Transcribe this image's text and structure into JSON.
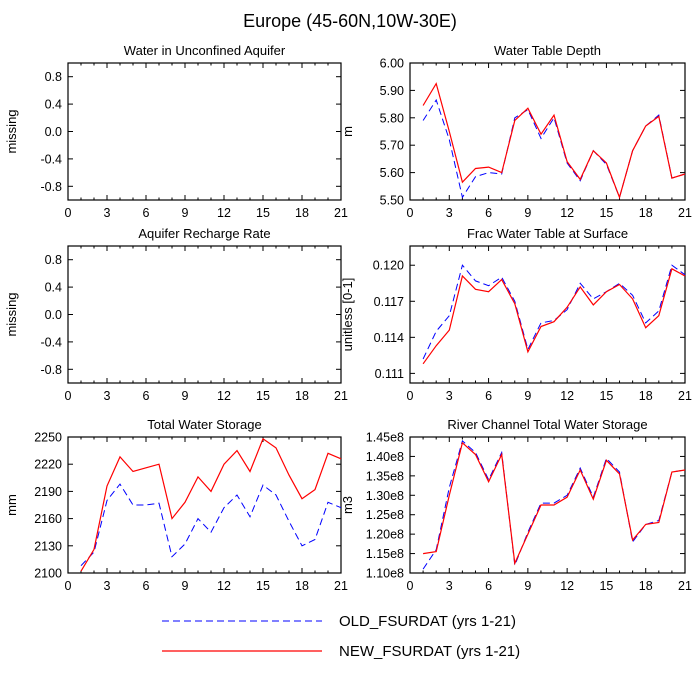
{
  "figure_title": "Europe (45-60N,10W-30E)",
  "colors": {
    "old": "#0000ff",
    "new": "#ff0000"
  },
  "legend": [
    {
      "label": "OLD_FSURDAT (yrs 1-21)",
      "style": "dashed",
      "color": "#0000ff"
    },
    {
      "label": "NEW_FSURDAT (yrs 1-21)",
      "style": "solid",
      "color": "#ff0000"
    }
  ],
  "chart_data": [
    {
      "type": "line",
      "title": "Water in Unconfined Aquifer",
      "xlabel": "",
      "ylabel": "missing",
      "xlim": [
        0,
        21
      ],
      "ylim": [
        -1.0,
        1.0
      ],
      "x_ticks": [
        "0",
        "3",
        "6",
        "9",
        "12",
        "15",
        "18",
        "21"
      ],
      "y_ticks": [
        "-0.8",
        "-0.4",
        "0.0",
        "0.4",
        "0.8"
      ],
      "y_tick_values": [
        -0.8,
        -0.4,
        0.0,
        0.4,
        0.8
      ],
      "x": [],
      "series": []
    },
    {
      "type": "line",
      "title": "Water Table Depth",
      "xlabel": "",
      "ylabel": "m",
      "xlim": [
        0,
        21
      ],
      "ylim": [
        5.5,
        6.0
      ],
      "x_ticks": [
        "0",
        "3",
        "6",
        "9",
        "12",
        "15",
        "18",
        "21"
      ],
      "y_ticks": [
        "5.50",
        "5.60",
        "5.70",
        "5.80",
        "5.90",
        "6.00"
      ],
      "y_tick_values": [
        5.5,
        5.6,
        5.7,
        5.8,
        5.9,
        6.0
      ],
      "x": [
        1,
        2,
        3,
        4,
        5,
        6,
        7,
        8,
        9,
        10,
        11,
        12,
        13,
        14,
        15,
        16,
        17,
        18,
        19,
        20,
        21
      ],
      "series": [
        {
          "name": "OLD_FSURDAT (yrs 1-21)",
          "values": [
            5.79,
            5.865,
            5.72,
            5.51,
            5.585,
            5.6,
            5.595,
            5.8,
            5.83,
            5.725,
            5.8,
            5.635,
            5.57,
            5.68,
            5.63,
            5.51,
            5.68,
            5.77,
            5.81,
            5.58,
            5.595
          ]
        },
        {
          "name": "NEW_FSURDAT (yrs 1-21)",
          "values": [
            5.845,
            5.925,
            5.75,
            5.565,
            5.615,
            5.62,
            5.6,
            5.79,
            5.835,
            5.74,
            5.81,
            5.64,
            5.575,
            5.68,
            5.635,
            5.51,
            5.68,
            5.77,
            5.805,
            5.58,
            5.595
          ]
        }
      ]
    },
    {
      "type": "line",
      "title": "Aquifer Recharge Rate",
      "xlabel": "",
      "ylabel": "missing",
      "xlim": [
        0,
        21
      ],
      "ylim": [
        -1.0,
        1.0
      ],
      "x_ticks": [
        "0",
        "3",
        "6",
        "9",
        "12",
        "15",
        "18",
        "21"
      ],
      "y_ticks": [
        "-0.8",
        "-0.4",
        "0.0",
        "0.4",
        "0.8"
      ],
      "y_tick_values": [
        -0.8,
        -0.4,
        0.0,
        0.4,
        0.8
      ],
      "x": [],
      "series": []
    },
    {
      "type": "line",
      "title": "Frac Water Table at Surface",
      "xlabel": "",
      "ylabel": "unitless [0-1]",
      "xlim": [
        0,
        21
      ],
      "ylim": [
        0.1102,
        0.1216
      ],
      "x_ticks": [
        "0",
        "3",
        "6",
        "9",
        "12",
        "15",
        "18",
        "21"
      ],
      "y_ticks": [
        "0.111",
        "0.114",
        "0.117",
        "0.120"
      ],
      "y_tick_values": [
        0.111,
        0.114,
        0.117,
        0.12
      ],
      "x": [
        1,
        2,
        3,
        4,
        5,
        6,
        7,
        8,
        9,
        10,
        11,
        12,
        13,
        14,
        15,
        16,
        17,
        18,
        19,
        20,
        21
      ],
      "series": [
        {
          "name": "OLD_FSURDAT (yrs 1-21)",
          "values": [
            0.1122,
            0.1145,
            0.1158,
            0.12,
            0.1187,
            0.1183,
            0.119,
            0.117,
            0.113,
            0.1152,
            0.1154,
            0.1163,
            0.1185,
            0.1172,
            0.1178,
            0.1185,
            0.1175,
            0.1152,
            0.1162,
            0.12,
            0.1192
          ]
        },
        {
          "name": "NEW_FSURDAT (yrs 1-21)",
          "values": [
            0.1118,
            0.1133,
            0.1146,
            0.1191,
            0.118,
            0.1178,
            0.1188,
            0.1168,
            0.1128,
            0.1149,
            0.1153,
            0.1165,
            0.1182,
            0.1167,
            0.1178,
            0.1184,
            0.1172,
            0.1148,
            0.1158,
            0.1197,
            0.1191
          ]
        }
      ]
    },
    {
      "type": "line",
      "title": "Total Water Storage",
      "xlabel": "",
      "ylabel": "mm",
      "xlim": [
        0,
        21
      ],
      "ylim": [
        2100,
        2250
      ],
      "x_ticks": [
        "0",
        "3",
        "6",
        "9",
        "12",
        "15",
        "18",
        "21"
      ],
      "y_ticks": [
        "2100",
        "2130",
        "2160",
        "2190",
        "2220",
        "2250"
      ],
      "y_tick_values": [
        2100,
        2130,
        2160,
        2190,
        2220,
        2250
      ],
      "x": [
        1,
        2,
        3,
        4,
        5,
        6,
        7,
        8,
        9,
        10,
        11,
        12,
        13,
        14,
        15,
        16,
        17,
        18,
        19,
        20,
        21
      ],
      "series": [
        {
          "name": "OLD_FSURDAT (yrs 1-21)",
          "values": [
            2108,
            2123,
            2180,
            2198,
            2175,
            2175,
            2177,
            2118,
            2132,
            2160,
            2145,
            2172,
            2186,
            2162,
            2197,
            2186,
            2157,
            2130,
            2137,
            2178,
            2172
          ]
        },
        {
          "name": "NEW_FSURDAT (yrs 1-21)",
          "values": [
            2102,
            2126,
            2196,
            2228,
            2212,
            2216,
            2220,
            2160,
            2178,
            2206,
            2190,
            2220,
            2235,
            2212,
            2248,
            2238,
            2208,
            2182,
            2192,
            2232,
            2226
          ]
        }
      ]
    },
    {
      "type": "line",
      "title": "River Channel Total Water Storage",
      "xlabel": "",
      "ylabel": "m3",
      "xlim": [
        0,
        21
      ],
      "ylim": [
        110000000.0,
        145000000.0
      ],
      "x_ticks": [
        "0",
        "3",
        "6",
        "9",
        "12",
        "15",
        "18",
        "21"
      ],
      "y_ticks": [
        "1.10e8",
        "1.15e8",
        "1.20e8",
        "1.25e8",
        "1.30e8",
        "1.35e8",
        "1.40e8",
        "1.45e8"
      ],
      "y_tick_values": [
        110000000.0,
        115000000.0,
        120000000.0,
        125000000.0,
        130000000.0,
        135000000.0,
        140000000.0,
        145000000.0
      ],
      "x": [
        1,
        2,
        3,
        4,
        5,
        6,
        7,
        8,
        9,
        10,
        11,
        12,
        13,
        14,
        15,
        16,
        17,
        18,
        19,
        20,
        21
      ],
      "series": [
        {
          "name": "OLD_FSURDAT (yrs 1-21)",
          "values": [
            111000000.0,
            116000000.0,
            132000000.0,
            144000000.0,
            141000000.0,
            134000000.0,
            141000000.0,
            112000000.0,
            120500000.0,
            128000000.0,
            128000000.0,
            130000000.0,
            137000000.0,
            129500000.0,
            139500000.0,
            136000000.0,
            118000000.0,
            122500000.0,
            123500000.0,
            136000000.0,
            136500000.0
          ]
        },
        {
          "name": "NEW_FSURDAT (yrs 1-21)",
          "values": [
            115000000.0,
            115500000.0,
            130000000.0,
            143500000.0,
            140500000.0,
            133500000.0,
            140500000.0,
            112500000.0,
            120000000.0,
            127500000.0,
            127500000.0,
            129500000.0,
            136500000.0,
            129000000.0,
            139000000.0,
            135500000.0,
            118500000.0,
            122500000.0,
            123000000.0,
            136000000.0,
            136500000.0
          ]
        }
      ]
    }
  ]
}
